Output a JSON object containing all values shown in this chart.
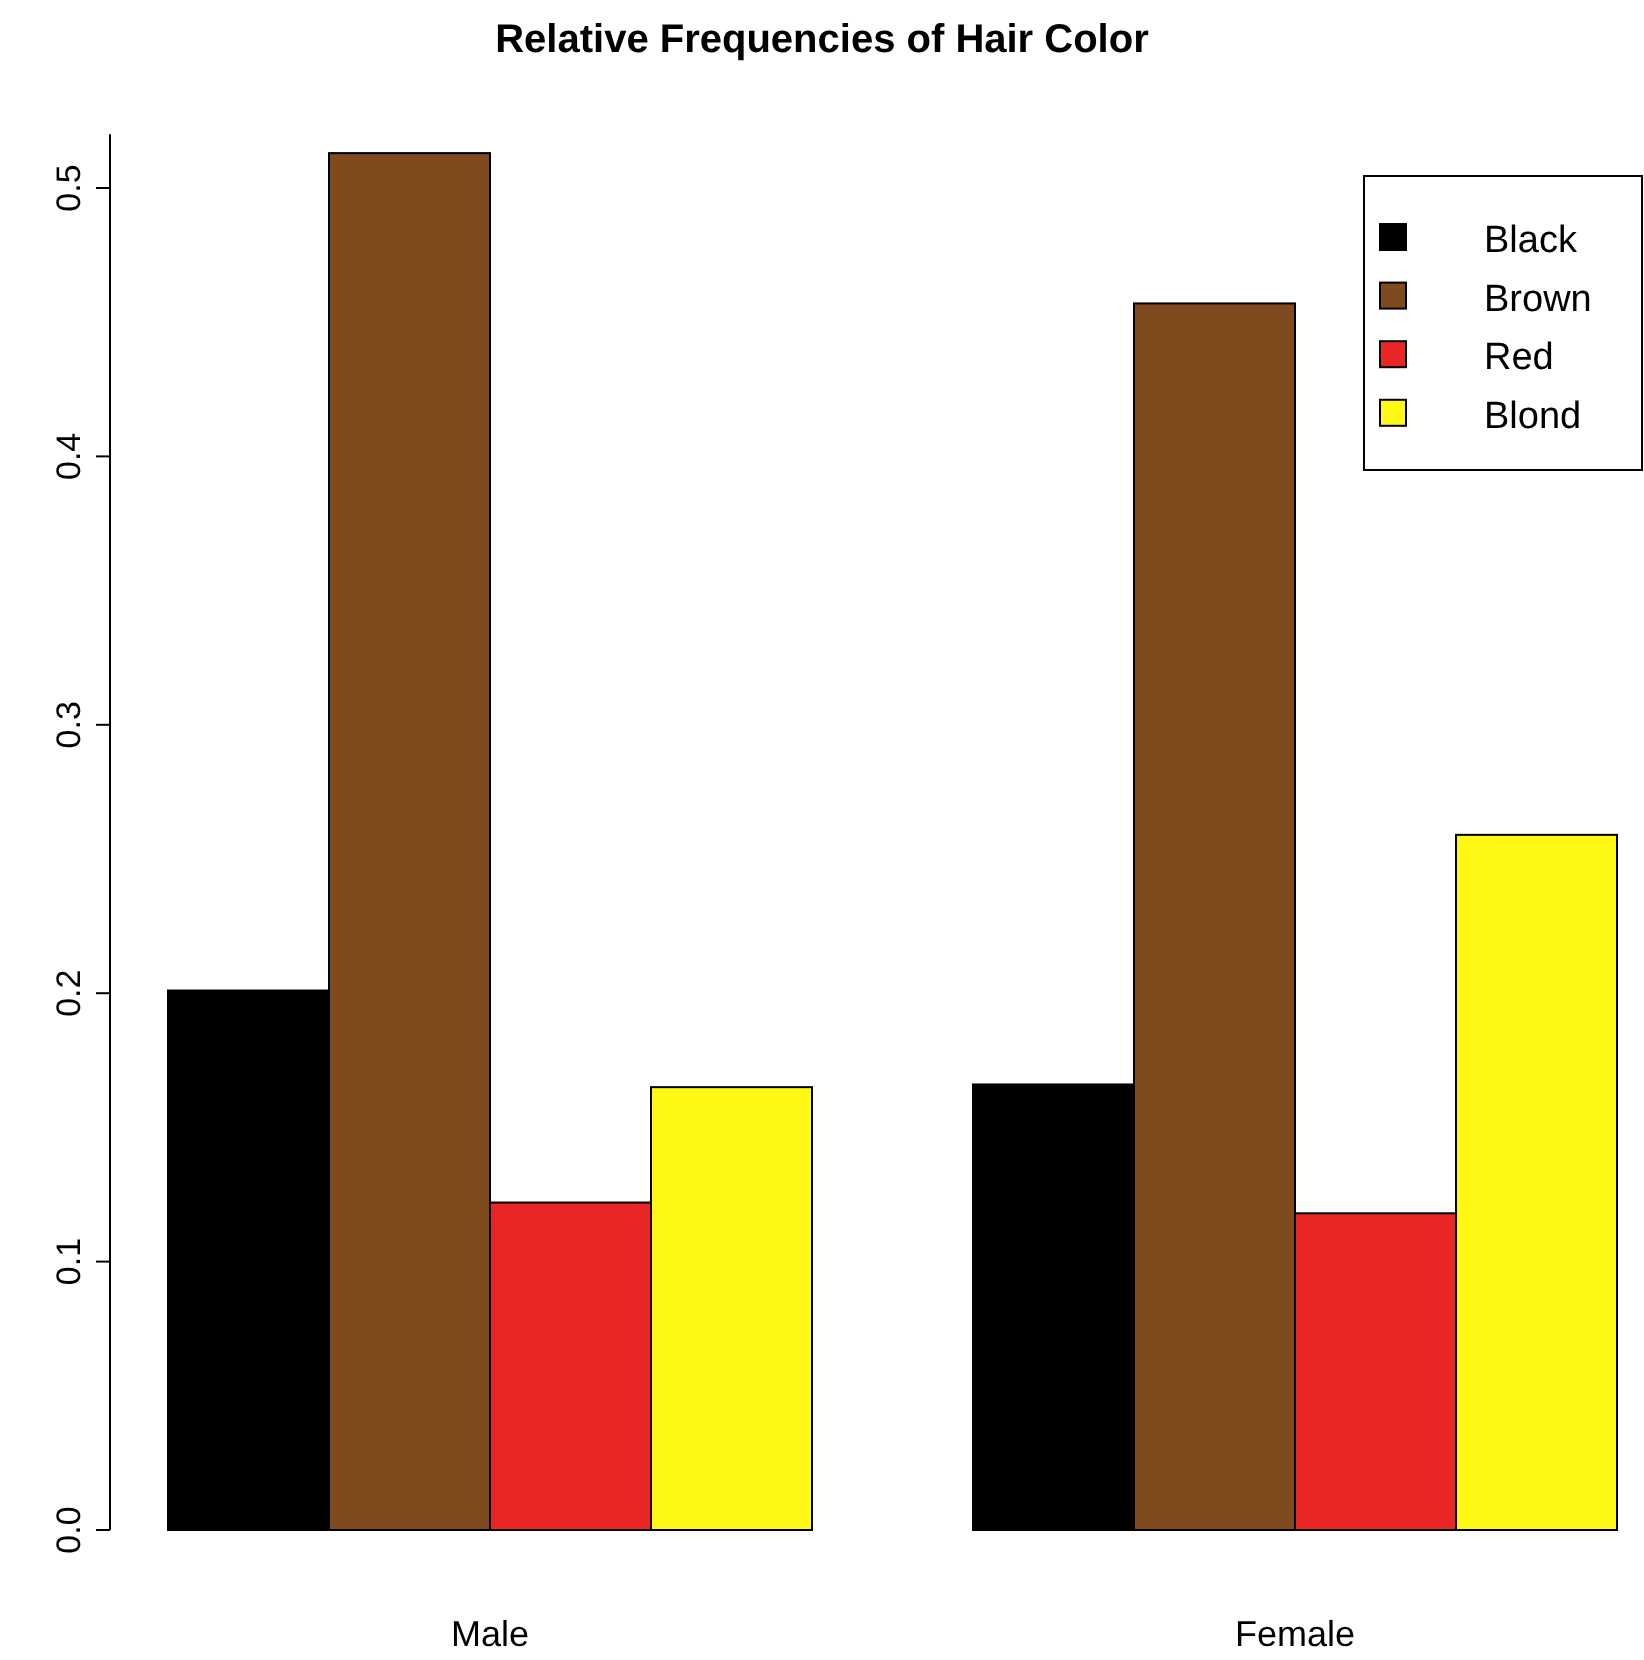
{
  "chart_data": {
    "type": "bar",
    "title": "Relative Frequencies of Hair Color",
    "categories": [
      "Male",
      "Female"
    ],
    "series": [
      {
        "name": "Black",
        "color": "#000000",
        "values": [
          0.201,
          0.166
        ]
      },
      {
        "name": "Brown",
        "color": "#7f4a1e",
        "values": [
          0.513,
          0.457
        ]
      },
      {
        "name": "Red",
        "color": "#e82626",
        "values": [
          0.122,
          0.118
        ]
      },
      {
        "name": "Blond",
        "color": "#fff815",
        "values": [
          0.165,
          0.259
        ]
      }
    ],
    "ylim": [
      0,
      0.52
    ],
    "yticks": [
      {
        "value": 0,
        "label": "0.0"
      },
      0.1,
      0.2,
      0.3,
      0.4,
      0.5
    ],
    "grid": false,
    "legend": "top right"
  }
}
